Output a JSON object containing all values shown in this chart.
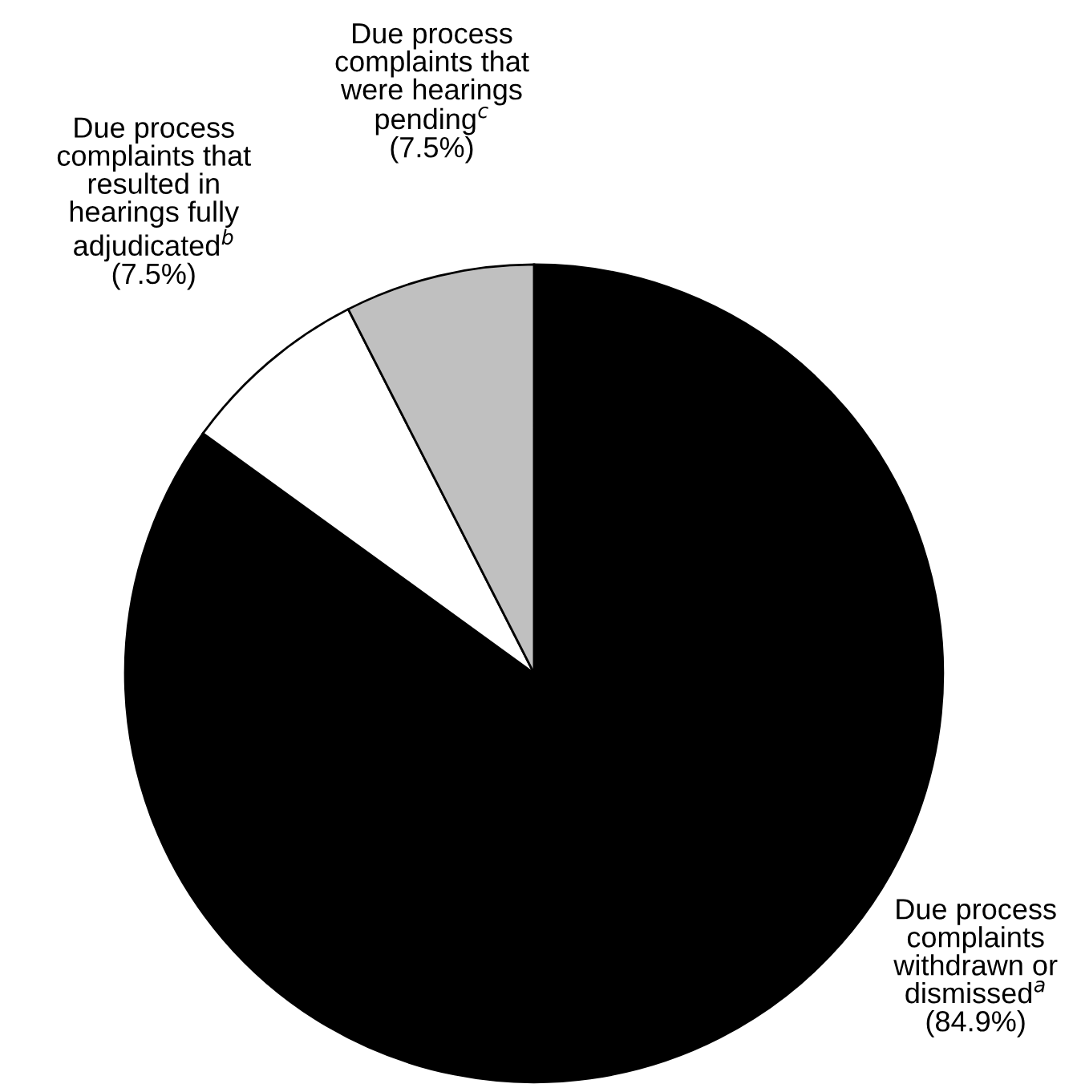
{
  "chart_data": {
    "type": "pie",
    "categories": [
      "Due process\ncomplaints\nwithdrawn or\ndismissed$^{a}$\n(84.9%)",
      "Due process\ncomplaints that\nresulted in\nhearings fully\nadjudicated$^{b}$\n(7.5%)",
      "Due process\ncomplaints that\nwere hearings\npending$^{c}$\n(7.5%)"
    ],
    "values": [
      84.9,
      7.5,
      7.5
    ],
    "colors": [
      "#000000",
      "#ffffff",
      "#c0c0c0"
    ]
  }
}
